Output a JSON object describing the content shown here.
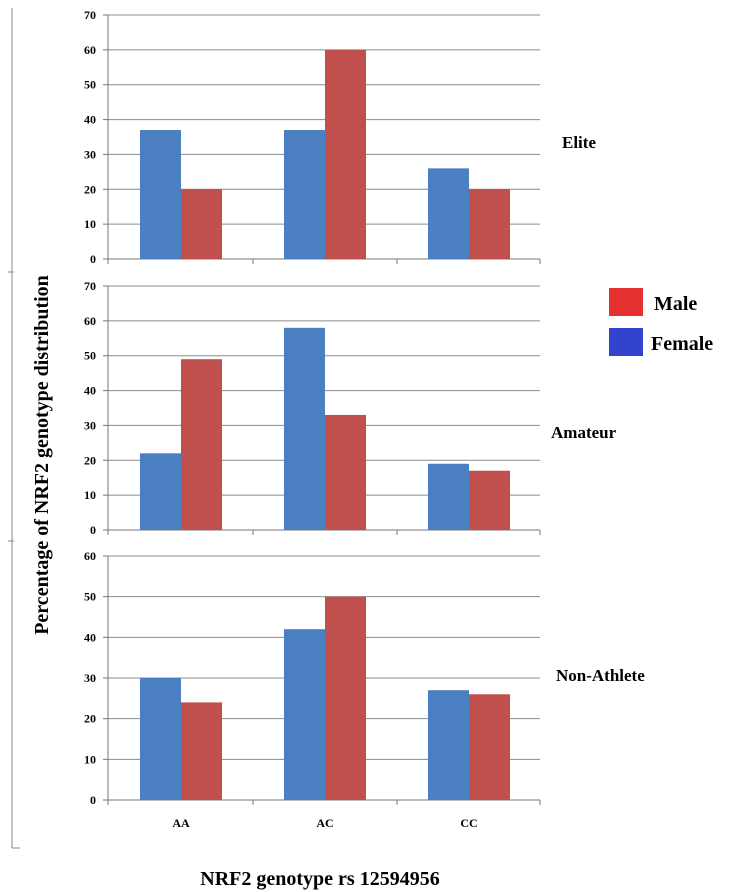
{
  "chart_data": {
    "type": "bar",
    "ylabel": "Percentage of NRF2 genotype distribution",
    "xlabel": "NRF2 genotype rs 12594956",
    "categories": [
      "AA",
      "AC",
      "CC"
    ],
    "legend": [
      {
        "name": "Male",
        "color": "#e53030"
      },
      {
        "name": "Female",
        "color": "#3344cc"
      }
    ],
    "bar_colors": {
      "Female": "#4a7fc1",
      "Male": "#c0504d"
    },
    "panels": [
      {
        "label": "Elite",
        "ylim": [
          0,
          70
        ],
        "yticks": [
          "0",
          "10",
          "20",
          "30",
          "40",
          "50",
          "60",
          "70"
        ],
        "series": [
          {
            "name": "Female",
            "values": [
              37,
              37,
              26
            ]
          },
          {
            "name": "Male",
            "values": [
              20,
              60,
              20
            ]
          }
        ]
      },
      {
        "label": "Amateur",
        "ylim": [
          0,
          70
        ],
        "yticks": [
          "0",
          "10",
          "20",
          "30",
          "40",
          "50",
          "60",
          "70"
        ],
        "series": [
          {
            "name": "Female",
            "values": [
              22,
              58,
              19
            ]
          },
          {
            "name": "Male",
            "values": [
              49,
              33,
              17
            ]
          }
        ]
      },
      {
        "label": "Non-Athlete",
        "ylim": [
          0,
          60
        ],
        "yticks": [
          "0",
          "10",
          "20",
          "30",
          "40",
          "50",
          "60"
        ],
        "series": [
          {
            "name": "Female",
            "values": [
              30,
              42,
              27
            ]
          },
          {
            "name": "Male",
            "values": [
              24,
              50,
              26
            ]
          }
        ]
      }
    ]
  }
}
